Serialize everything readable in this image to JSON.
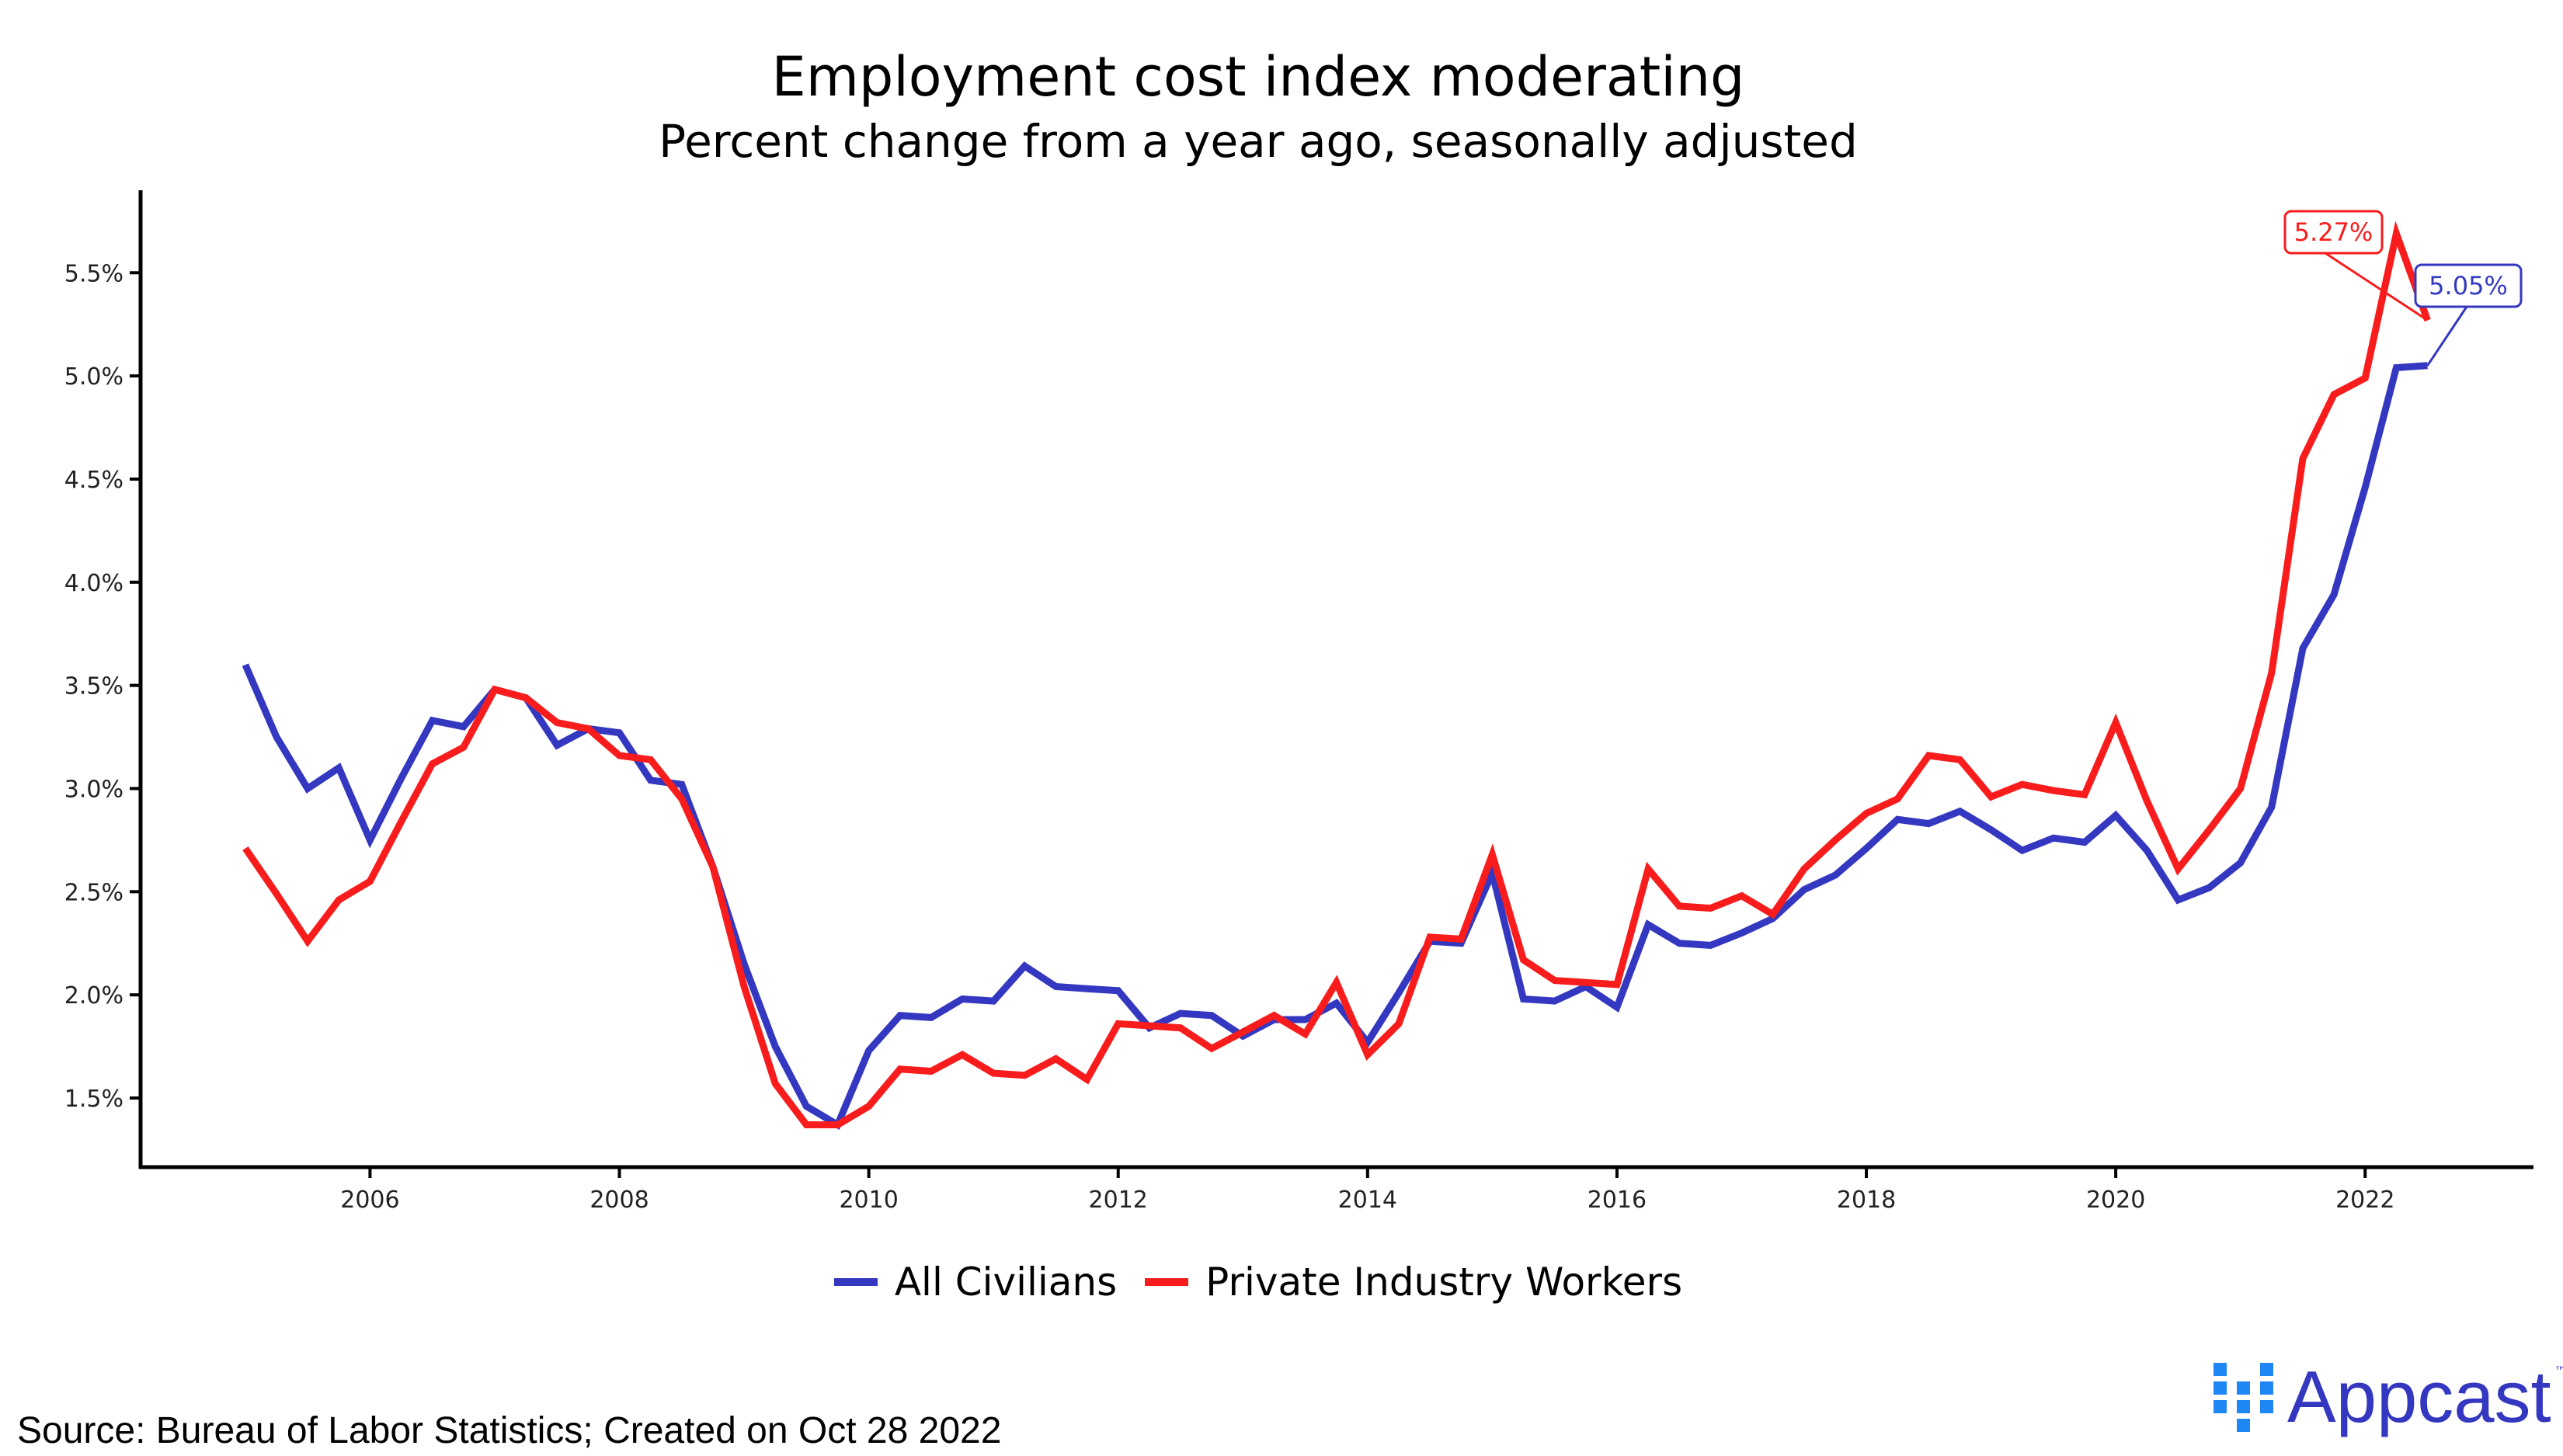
{
  "chart_data": {
    "type": "line",
    "title": "Employment cost index moderating",
    "subtitle": "Percent change from a year ago, seasonally adjusted",
    "xlabel": "",
    "ylabel": "",
    "xlim": [
      2004.16,
      2023.35
    ],
    "ylim": [
      1.165,
      5.9
    ],
    "x_ticks": [
      2006,
      2008,
      2010,
      2012,
      2014,
      2016,
      2018,
      2020,
      2022
    ],
    "x_tick_labels": [
      "2006",
      "2008",
      "2010",
      "2012",
      "2014",
      "2016",
      "2018",
      "2020",
      "2022"
    ],
    "y_ticks": [
      1.5,
      2.0,
      2.5,
      3.0,
      3.5,
      4.0,
      4.5,
      5.0,
      5.5
    ],
    "y_tick_labels": [
      "1.5%",
      "2.0%",
      "2.5%",
      "3.0%",
      "3.5%",
      "4.0%",
      "4.5%",
      "5.0%",
      "5.5%"
    ],
    "grid": false,
    "legend_position": "bottom",
    "x_start": 2005.0,
    "x_step": 0.25,
    "series": [
      {
        "name": "All Civilians",
        "color": "#3437c0",
        "end_label": "5.05%",
        "values": [
          3.6,
          3.25,
          3.0,
          3.1,
          2.75,
          3.05,
          3.33,
          3.3,
          3.48,
          3.44,
          3.21,
          3.29,
          3.27,
          3.04,
          3.02,
          2.62,
          2.15,
          1.75,
          1.46,
          1.37,
          1.73,
          1.9,
          1.89,
          1.98,
          1.97,
          2.14,
          2.04,
          2.03,
          2.02,
          1.84,
          1.91,
          1.9,
          1.8,
          1.88,
          1.88,
          1.96,
          1.77,
          2.01,
          2.26,
          2.25,
          2.59,
          1.98,
          1.97,
          2.04,
          1.94,
          2.34,
          2.25,
          2.24,
          2.3,
          2.37,
          2.51,
          2.58,
          2.71,
          2.85,
          2.83,
          2.89,
          2.8,
          2.7,
          2.76,
          2.74,
          2.87,
          2.7,
          2.46,
          2.52,
          2.64,
          2.91,
          3.68,
          3.94,
          4.46,
          5.04,
          5.05
        ]
      },
      {
        "name": "Private Industry Workers",
        "color": "#f81c1c",
        "end_label": "5.27%",
        "values": [
          2.71,
          2.49,
          2.26,
          2.46,
          2.55,
          2.84,
          3.12,
          3.2,
          3.48,
          3.44,
          3.32,
          3.29,
          3.16,
          3.14,
          2.95,
          2.62,
          2.04,
          1.57,
          1.37,
          1.37,
          1.46,
          1.64,
          1.63,
          1.71,
          1.62,
          1.61,
          1.69,
          1.59,
          1.86,
          1.85,
          1.84,
          1.74,
          1.82,
          1.9,
          1.81,
          2.06,
          1.71,
          1.86,
          2.28,
          2.27,
          2.68,
          2.17,
          2.07,
          2.06,
          2.05,
          2.61,
          2.43,
          2.42,
          2.48,
          2.39,
          2.61,
          2.75,
          2.88,
          2.95,
          3.16,
          3.14,
          2.96,
          3.02,
          2.99,
          2.97,
          3.32,
          2.94,
          2.61,
          2.8,
          3.0,
          3.56,
          4.6,
          4.91,
          4.99,
          5.69,
          5.27
        ]
      }
    ]
  },
  "footer": {
    "source": "Source: Bureau of Labor Statistics; Created on Oct 28 2022",
    "logo_text": "Appcast",
    "logo_tm": "™"
  }
}
